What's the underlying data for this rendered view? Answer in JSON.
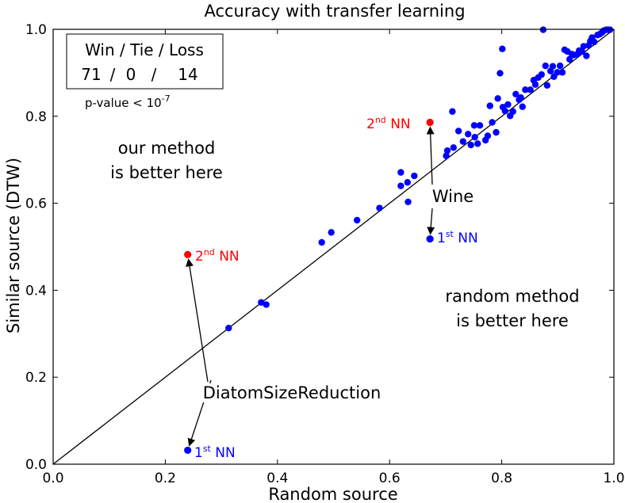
{
  "chart_data": {
    "type": "scatter",
    "title": "Accuracy with transfer learning",
    "xlabel": "Random source",
    "ylabel": "Similar source (DTW)",
    "xlim": [
      0.0,
      1.0
    ],
    "ylim": [
      0.0,
      1.0
    ],
    "x_ticks": [
      "0.0",
      "0.2",
      "0.4",
      "0.6",
      "0.8",
      "1.0"
    ],
    "y_ticks": [
      "0.0",
      "0.2",
      "0.4",
      "0.6",
      "0.8",
      "1.0"
    ],
    "grid": false,
    "reference_line": {
      "from": [
        0,
        0
      ],
      "to": [
        1,
        1
      ],
      "color": "#000000"
    },
    "colors": {
      "points": "#0000ff",
      "highlight": "#ff0000",
      "nn1_text": "#0000ff",
      "nn2_text": "#ff0000"
    },
    "stats_box": {
      "header": "Win / Tie / Loss",
      "values": [
        "71",
        "/",
        "0",
        "/",
        "14"
      ],
      "pvalue_prefix": "p-value < 10",
      "pvalue_exponent": "-7"
    },
    "regions": {
      "upper": [
        "our method",
        "is better here"
      ],
      "lower": [
        "random method",
        "is better here"
      ]
    },
    "highlights": [
      {
        "dataset": "DiatomSizeReduction",
        "first_nn": {
          "x": 0.24,
          "y": 0.032,
          "label": "1",
          "sup": "st",
          "suffix": " NN"
        },
        "second_nn": {
          "x": 0.24,
          "y": 0.482,
          "label": "2",
          "sup": "nd",
          "suffix": " NN"
        }
      },
      {
        "dataset": "Wine",
        "first_nn": {
          "x": 0.672,
          "y": 0.518,
          "label": "1",
          "sup": "st",
          "suffix": " NN"
        },
        "second_nn": {
          "x": 0.672,
          "y": 0.786,
          "label": "2",
          "sup": "nd",
          "suffix": " NN"
        }
      }
    ],
    "points": [
      [
        0.313,
        0.313
      ],
      [
        0.371,
        0.372
      ],
      [
        0.38,
        0.367
      ],
      [
        0.479,
        0.51
      ],
      [
        0.496,
        0.533
      ],
      [
        0.542,
        0.561
      ],
      [
        0.582,
        0.589
      ],
      [
        0.62,
        0.671
      ],
      [
        0.62,
        0.64
      ],
      [
        0.632,
        0.648
      ],
      [
        0.633,
        0.603
      ],
      [
        0.644,
        0.663
      ],
      [
        0.701,
        0.709
      ],
      [
        0.703,
        0.721
      ],
      [
        0.712,
        0.811
      ],
      [
        0.714,
        0.728
      ],
      [
        0.723,
        0.766
      ],
      [
        0.731,
        0.742
      ],
      [
        0.74,
        0.759
      ],
      [
        0.745,
        0.734
      ],
      [
        0.751,
        0.779
      ],
      [
        0.752,
        0.752
      ],
      [
        0.757,
        0.737
      ],
      [
        0.761,
        0.779
      ],
      [
        0.771,
        0.745
      ],
      [
        0.775,
        0.755
      ],
      [
        0.779,
        0.824
      ],
      [
        0.783,
        0.786
      ],
      [
        0.79,
        0.763
      ],
      [
        0.793,
        0.841
      ],
      [
        0.797,
        0.899
      ],
      [
        0.801,
        0.955
      ],
      [
        0.802,
        0.821
      ],
      [
        0.806,
        0.812
      ],
      [
        0.811,
        0.827
      ],
      [
        0.815,
        0.801
      ],
      [
        0.82,
        0.811
      ],
      [
        0.825,
        0.851
      ],
      [
        0.831,
        0.838
      ],
      [
        0.834,
        0.843
      ],
      [
        0.837,
        0.822
      ],
      [
        0.842,
        0.861
      ],
      [
        0.851,
        0.861
      ],
      [
        0.857,
        0.883
      ],
      [
        0.86,
        0.873
      ],
      [
        0.865,
        0.889
      ],
      [
        0.871,
        0.896
      ],
      [
        0.874,
        0.999
      ],
      [
        0.878,
        0.916
      ],
      [
        0.881,
        0.871
      ],
      [
        0.887,
        0.904
      ],
      [
        0.891,
        0.915
      ],
      [
        0.893,
        0.891
      ],
      [
        0.899,
        0.901
      ],
      [
        0.904,
        0.916
      ],
      [
        0.908,
        0.901
      ],
      [
        0.912,
        0.953
      ],
      [
        0.917,
        0.949
      ],
      [
        0.921,
        0.931
      ],
      [
        0.925,
        0.943
      ],
      [
        0.929,
        0.941
      ],
      [
        0.935,
        0.943
      ],
      [
        0.938,
        0.951
      ],
      [
        0.943,
        0.949
      ],
      [
        0.946,
        0.961
      ],
      [
        0.951,
        0.939
      ],
      [
        0.955,
        0.963
      ],
      [
        0.958,
        0.973
      ],
      [
        0.961,
        0.981
      ],
      [
        0.965,
        0.971
      ],
      [
        0.971,
        0.987
      ],
      [
        0.975,
        0.989
      ],
      [
        0.979,
        0.993
      ],
      [
        0.982,
        0.997
      ],
      [
        0.986,
        0.999
      ],
      [
        0.99,
        0.999
      ],
      [
        0.993,
        0.999
      ]
    ]
  }
}
